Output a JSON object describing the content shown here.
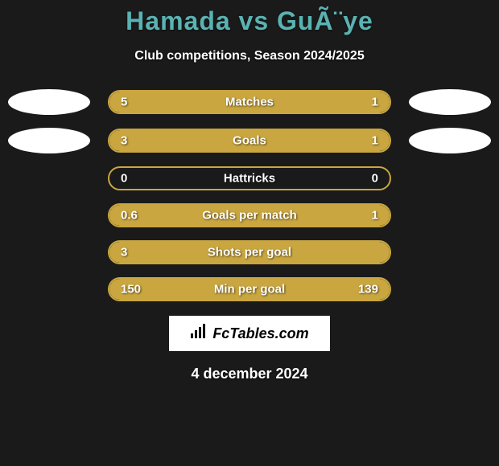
{
  "title": "Hamada vs GuÃ¨ye",
  "subtitle": "Club competitions, Season 2024/2025",
  "colors": {
    "background": "#1a1a1a",
    "title_color": "#5ab3b3",
    "text_color": "#ffffff",
    "bar_fill": "#c9a63f",
    "bar_border": "#c9a63f",
    "oval": "#ffffff",
    "logo_bg": "#ffffff",
    "logo_text": "#000000"
  },
  "typography": {
    "title_fontsize": 32,
    "subtitle_fontsize": 16,
    "stat_label_fontsize": 15,
    "date_fontsize": 18
  },
  "stats": [
    {
      "label": "Matches",
      "left_val": "5",
      "right_val": "1",
      "left_pct": 83,
      "right_pct": 17,
      "show_ovals": true
    },
    {
      "label": "Goals",
      "left_val": "3",
      "right_val": "1",
      "left_pct": 75,
      "right_pct": 25,
      "show_ovals": true
    },
    {
      "label": "Hattricks",
      "left_val": "0",
      "right_val": "0",
      "left_pct": 0,
      "right_pct": 0,
      "show_ovals": false
    },
    {
      "label": "Goals per match",
      "left_val": "0.6",
      "right_val": "1",
      "left_pct": 37,
      "right_pct": 63,
      "show_ovals": false
    },
    {
      "label": "Shots per goal",
      "left_val": "3",
      "right_val": "",
      "left_pct": 100,
      "right_pct": 0,
      "show_ovals": false
    },
    {
      "label": "Min per goal",
      "left_val": "150",
      "right_val": "139",
      "left_pct": 52,
      "right_pct": 48,
      "show_ovals": false
    }
  ],
  "footer": {
    "logo_text": "FcTables.com"
  },
  "date": "4 december 2024"
}
